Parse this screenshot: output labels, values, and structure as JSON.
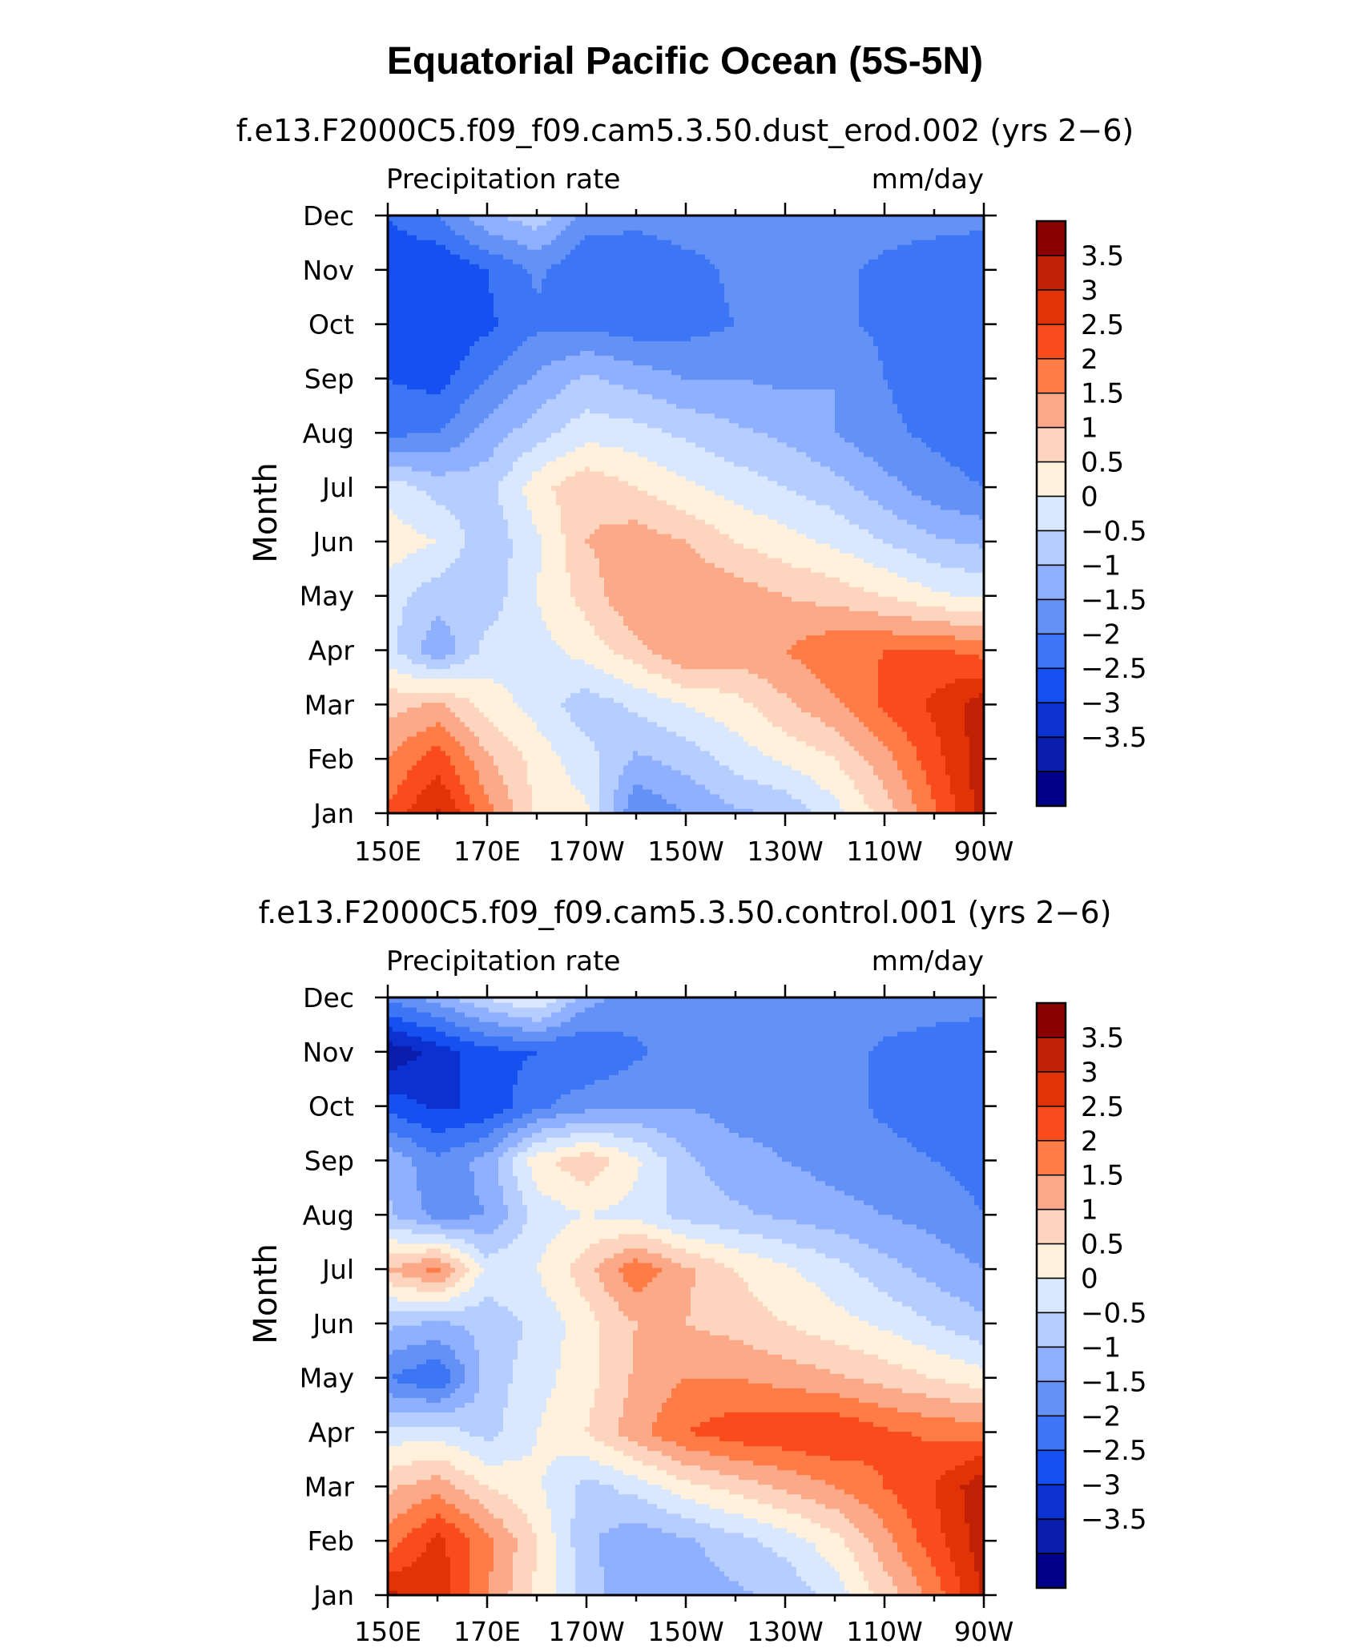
{
  "title": "Equatorial Pacific Ocean (5S-5N)",
  "colors": {
    "levels": [
      "#00008b",
      "#0a1dad",
      "#0b31d0",
      "#1650f0",
      "#3d76f4",
      "#6391f5",
      "#8fafff",
      "#b6cdff",
      "#d9e8ff",
      "#fff1dc",
      "#fdd4bd",
      "#fca989",
      "#ff7c46",
      "#fa4b1d",
      "#e23307",
      "#c02105",
      "#8b0000"
    ]
  },
  "chart_data": [
    {
      "type": "heatmap",
      "subtitle": "f.e13.F2000C5.f09_f09.cam5.3.50.dust_erod.002 (yrs 2−6)",
      "left_label": "Precipitation rate",
      "right_label": "mm/day",
      "ylabel": "Month",
      "x_categories": [
        "150E",
        "170E",
        "170W",
        "150W",
        "130W",
        "110W",
        "90W"
      ],
      "y_categories": [
        "Jan",
        "Feb",
        "Mar",
        "Apr",
        "May",
        "Jun",
        "Jul",
        "Aug",
        "Sep",
        "Oct",
        "Nov",
        "Dec"
      ],
      "x_grid_lon_east": [
        150,
        160,
        170,
        180,
        190,
        200,
        210,
        220,
        230,
        240,
        250,
        260,
        270
      ],
      "colorbar_labels": [
        "3.5",
        "3",
        "2.5",
        "2",
        "1.5",
        "1",
        "0.5",
        "0",
        "−0.5",
        "−1",
        "−1.5",
        "−2",
        "−2.5",
        "−3",
        "−3.5"
      ],
      "levels": [
        -3.5,
        -3,
        -2.5,
        -2,
        -1.5,
        -1,
        -0.5,
        0,
        0.5,
        1,
        1.5,
        2,
        2.5,
        3,
        3.5
      ],
      "values": [
        [
          2.6,
          3.6,
          2.2,
          0.9,
          0.6,
          -1.5,
          -1.0,
          -0.6,
          -0.4,
          0.3,
          1.2,
          2.4,
          3.8
        ],
        [
          2.0,
          2.8,
          1.6,
          0.8,
          0.2,
          -0.6,
          -0.3,
          0.2,
          0.6,
          1.0,
          1.8,
          2.8,
          3.8
        ],
        [
          1.3,
          1.6,
          0.8,
          0.3,
          -0.3,
          0.1,
          0.5,
          0.8,
          1.4,
          1.9,
          2.6,
          3.1,
          3.8
        ],
        [
          0.2,
          -0.9,
          0.2,
          0.3,
          0.7,
          1.3,
          2.0,
          1.8,
          2.0,
          2.4,
          2.5,
          2.6,
          2.3
        ],
        [
          0.2,
          -0.3,
          -0.3,
          0.5,
          1.2,
          2.0,
          2.0,
          1.8,
          1.5,
          1.3,
          1.0,
          0.6,
          0.4
        ],
        [
          0.8,
          0.5,
          -0.4,
          0.4,
          1.5,
          1.8,
          1.5,
          1.0,
          0.7,
          0.4,
          0.0,
          -0.4,
          -0.6
        ],
        [
          0.3,
          -0.2,
          -0.2,
          0.8,
          1.4,
          1.0,
          0.6,
          0.3,
          0.0,
          -0.3,
          -0.8,
          -1.3,
          -1.5
        ],
        [
          -1.6,
          -1.5,
          -0.8,
          -0.2,
          0.3,
          0.2,
          -0.1,
          -0.4,
          -0.6,
          -1.0,
          -1.4,
          -1.6,
          -1.8
        ],
        [
          -2.0,
          -2.2,
          -1.5,
          -0.9,
          -0.4,
          -0.7,
          -1.0,
          -1.0,
          -1.1,
          -1.0,
          -1.5,
          -1.7,
          -1.9
        ],
        [
          -2.4,
          -2.5,
          -2.1,
          -1.6,
          -1.6,
          -1.8,
          -1.7,
          -1.5,
          -1.4,
          -1.4,
          -1.6,
          -1.8,
          -2.0
        ],
        [
          -2.4,
          -2.5,
          -2.0,
          -1.4,
          -2.0,
          -2.0,
          -1.7,
          -1.4,
          -1.3,
          -1.4,
          -1.6,
          -1.8,
          -2.0
        ],
        [
          -2.0,
          -1.5,
          -0.6,
          -0.2,
          -1.2,
          -1.3,
          -1.2,
          -1.2,
          -1.2,
          -1.2,
          -1.3,
          -1.3,
          -1.3
        ]
      ]
    },
    {
      "type": "heatmap",
      "subtitle": "f.e13.F2000C5.f09_f09.cam5.3.50.control.001 (yrs 2−6)",
      "left_label": "Precipitation rate",
      "right_label": "mm/day",
      "ylabel": "Month",
      "x_categories": [
        "150E",
        "170E",
        "170W",
        "150W",
        "130W",
        "110W",
        "90W"
      ],
      "y_categories": [
        "Jan",
        "Feb",
        "Mar",
        "Apr",
        "May",
        "Jun",
        "Jul",
        "Aug",
        "Sep",
        "Oct",
        "Nov",
        "Dec"
      ],
      "x_grid_lon_east": [
        150,
        160,
        170,
        180,
        190,
        200,
        210,
        220,
        230,
        240,
        250,
        260,
        270
      ],
      "colorbar_labels": [
        "3.5",
        "3",
        "2.5",
        "2",
        "1.5",
        "1",
        "0.5",
        "0",
        "−0.5",
        "−1",
        "−1.5",
        "−2",
        "−2.5",
        "−3",
        "−3.5"
      ],
      "levels": [
        -3.5,
        -3,
        -2.5,
        -2,
        -1.5,
        -1,
        -0.5,
        0,
        0.5,
        1,
        1.5,
        2,
        2.5,
        3,
        3.5
      ],
      "values": [
        [
          3.6,
          3.3,
          2.0,
          0.9,
          -0.2,
          -1.0,
          -0.8,
          -0.6,
          -0.4,
          0.2,
          1.2,
          2.2,
          3.6
        ],
        [
          2.2,
          3.2,
          2.2,
          1.0,
          -0.4,
          -0.9,
          -0.6,
          -0.2,
          0.2,
          0.8,
          1.8,
          2.8,
          3.8
        ],
        [
          1.4,
          1.8,
          1.0,
          0.6,
          -0.2,
          0.2,
          0.8,
          1.2,
          1.6,
          2.0,
          2.5,
          3.0,
          3.9
        ],
        [
          0.2,
          0.3,
          -0.2,
          0.5,
          1.0,
          1.8,
          2.5,
          2.8,
          2.9,
          3.0,
          2.6,
          2.4,
          2.3
        ],
        [
          -1.5,
          -2.0,
          -0.3,
          0.3,
          0.8,
          1.6,
          2.0,
          2.0,
          1.8,
          1.6,
          1.3,
          1.0,
          0.7
        ],
        [
          -0.4,
          -0.6,
          -0.3,
          0.1,
          0.8,
          1.5,
          1.5,
          1.3,
          1.0,
          0.7,
          0.4,
          0.0,
          -0.4
        ],
        [
          1.5,
          2.2,
          0.3,
          0.5,
          1.3,
          2.4,
          1.6,
          1.0,
          0.6,
          0.2,
          -0.3,
          -0.7,
          -1.0
        ],
        [
          -0.4,
          -1.2,
          -1.0,
          0.2,
          0.5,
          0.3,
          -0.2,
          -0.4,
          -0.6,
          -0.8,
          -1.0,
          -1.2,
          -1.5
        ],
        [
          -0.6,
          -1.4,
          -0.8,
          0.8,
          1.4,
          0.6,
          -0.4,
          -0.8,
          -1.0,
          -1.2,
          -1.3,
          -1.5,
          -1.7
        ],
        [
          -2.2,
          -2.6,
          -2.4,
          -1.6,
          -1.2,
          -1.0,
          -1.0,
          -1.2,
          -1.2,
          -1.3,
          -1.6,
          -1.8,
          -2.0
        ],
        [
          -3.4,
          -2.8,
          -2.2,
          -2.0,
          -2.0,
          -1.6,
          -1.2,
          -1.0,
          -1.2,
          -1.3,
          -1.6,
          -1.8,
          -2.0
        ],
        [
          -1.4,
          -0.8,
          0.0,
          0.6,
          -0.8,
          -1.2,
          -1.2,
          -1.3,
          -1.3,
          -1.3,
          -1.2,
          -1.2,
          -1.2
        ]
      ]
    }
  ]
}
